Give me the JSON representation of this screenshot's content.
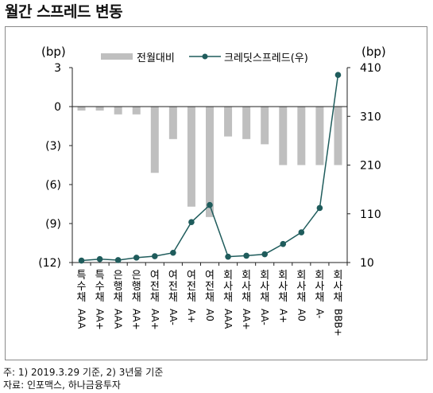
{
  "title": "월간 스프레드 변동",
  "notes": {
    "line1": "주: 1) 2019.3.29 기준, 2) 3년물 기준",
    "line2": "자료: 인포맥스, 하나금융투자"
  },
  "chart_data": {
    "type": "bar+line",
    "categories": [
      "특수채 AAA",
      "특수채 AA+",
      "은행채 AAA",
      "은행채 AA+",
      "여전채 AA+",
      "여전채 AA-",
      "여전채 A+",
      "여전채 A0",
      "회사채 AAA",
      "회사채 AA+",
      "회사채 AA-",
      "회사채 A+",
      "회사채 A0",
      "회사채 A-",
      "회사채 BBB+"
    ],
    "category_labels": [
      {
        "top": "특수채",
        "bottom": "AAA"
      },
      {
        "top": "특수채",
        "bottom": "AA+"
      },
      {
        "top": "은행채",
        "bottom": "AAA"
      },
      {
        "top": "은행채",
        "bottom": "AA+"
      },
      {
        "top": "여전채",
        "bottom": "AA+"
      },
      {
        "top": "여전채",
        "bottom": "AA-"
      },
      {
        "top": "여전채",
        "bottom": "A+"
      },
      {
        "top": "여전채",
        "bottom": "A0"
      },
      {
        "top": "회사채",
        "bottom": "AAA"
      },
      {
        "top": "회사채",
        "bottom": "AA+"
      },
      {
        "top": "회사채",
        "bottom": "AA-"
      },
      {
        "top": "회사채",
        "bottom": "A+"
      },
      {
        "top": "회사채",
        "bottom": "A0"
      },
      {
        "top": "회사채",
        "bottom": "A-"
      },
      {
        "top": "회사채",
        "bottom": "BBB+"
      }
    ],
    "series": [
      {
        "name": "전월대비",
        "type": "bar",
        "axis": "left",
        "color": "#bfbfbf",
        "values": [
          -0.3,
          -0.3,
          -0.6,
          -0.6,
          -5.1,
          -2.5,
          -7.7,
          -8.5,
          -2.3,
          -2.5,
          -2.9,
          -4.5,
          -4.5,
          -4.5,
          -4.5
        ]
      },
      {
        "name": "크레딧스프레드(우)",
        "type": "line",
        "axis": "right",
        "color": "#1f5c5c",
        "values": [
          14,
          17,
          15,
          20,
          23,
          30,
          93,
          128,
          22,
          24,
          27,
          48,
          72,
          122,
          395
        ]
      }
    ],
    "left_axis": {
      "unit": "(bp)",
      "ylim": [
        -12,
        3
      ],
      "ticks": [
        "3",
        "0",
        "(3)",
        "(6)",
        "(9)",
        "(12)"
      ],
      "tick_values": [
        3,
        0,
        -3,
        -6,
        -9,
        -12
      ]
    },
    "right_axis": {
      "unit": "(bp)",
      "ylim": [
        10,
        410
      ],
      "ticks": [
        "410",
        "310",
        "210",
        "110",
        "10"
      ],
      "tick_values": [
        410,
        310,
        210,
        110,
        10
      ]
    },
    "legend": {
      "position": "top",
      "items": [
        "전월대비",
        "크레딧스프레드(우)"
      ]
    },
    "grid": false
  }
}
